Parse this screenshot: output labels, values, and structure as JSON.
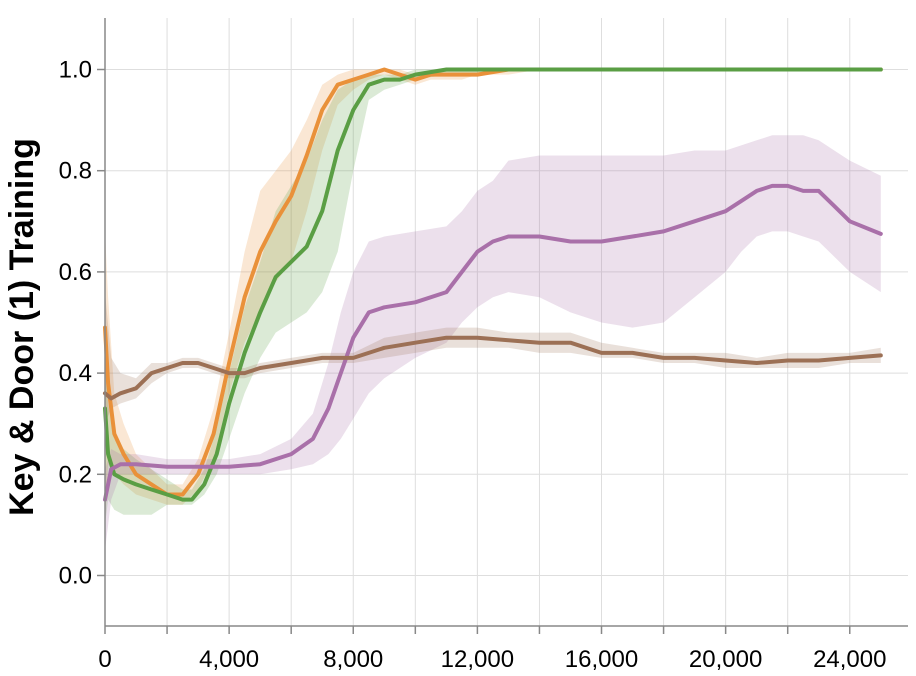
{
  "chart_data": {
    "type": "line",
    "ylabel": "Key & Door (1) Training",
    "xlabel": "",
    "xlim": [
      0,
      26000
    ],
    "ylim": [
      -0.1,
      1.1
    ],
    "grid": true,
    "x_ticks": [
      0,
      2000,
      4000,
      6000,
      8000,
      10000,
      12000,
      14000,
      16000,
      18000,
      20000,
      22000,
      24000,
      26000
    ],
    "x_tick_labels": [
      "0",
      "",
      "4,000",
      "",
      "8,000",
      "",
      "12,000",
      "",
      "16,000",
      "",
      "20,000",
      "",
      "24,000",
      ""
    ],
    "y_ticks": [
      0.0,
      0.2,
      0.4,
      0.6,
      0.8,
      1.0
    ],
    "y_tick_labels": [
      "0.0",
      "0.2",
      "0.4",
      "0.6",
      "0.8",
      "1.0"
    ],
    "series": [
      {
        "color": "#e9913a",
        "x": [
          0,
          100,
          300,
          600,
          1000,
          1500,
          2000,
          2500,
          3000,
          3500,
          4000,
          4500,
          5000,
          5500,
          6000,
          6500,
          7000,
          7500,
          8000,
          8500,
          9000,
          9500,
          10000,
          10500,
          11000,
          11500,
          12000,
          13000,
          14000,
          15000,
          16000,
          18000,
          20000,
          22000,
          25000
        ],
        "y": [
          0.49,
          0.38,
          0.28,
          0.24,
          0.2,
          0.18,
          0.16,
          0.16,
          0.2,
          0.28,
          0.42,
          0.55,
          0.64,
          0.7,
          0.75,
          0.83,
          0.92,
          0.97,
          0.98,
          0.99,
          1.0,
          0.99,
          0.98,
          0.99,
          0.99,
          0.99,
          0.99,
          1.0,
          1.0,
          1.0,
          1.0,
          1.0,
          1.0,
          1.0,
          1.0
        ],
        "lower": [
          0.1,
          0.22,
          0.2,
          0.18,
          0.16,
          0.15,
          0.14,
          0.14,
          0.17,
          0.23,
          0.36,
          0.46,
          0.52,
          0.58,
          0.62,
          0.72,
          0.84,
          0.93,
          0.96,
          0.98,
          0.99,
          0.98,
          0.97,
          0.98,
          0.98,
          0.98,
          0.99,
          0.99,
          1.0,
          1.0,
          1.0,
          1.0,
          1.0,
          1.0,
          1.0
        ],
        "upper": [
          0.68,
          0.55,
          0.36,
          0.3,
          0.24,
          0.21,
          0.18,
          0.18,
          0.23,
          0.33,
          0.48,
          0.64,
          0.76,
          0.8,
          0.84,
          0.9,
          0.97,
          0.99,
          1.0,
          1.0,
          1.0,
          1.0,
          0.99,
          0.99,
          1.0,
          1.0,
          1.0,
          1.0,
          1.0,
          1.0,
          1.0,
          1.0,
          1.0,
          1.0,
          1.0
        ]
      },
      {
        "color": "#5a9e44",
        "x": [
          0,
          100,
          300,
          600,
          1000,
          1500,
          2000,
          2500,
          2800,
          3200,
          3600,
          4000,
          4500,
          5000,
          5500,
          6000,
          6500,
          7000,
          7500,
          8000,
          8500,
          9000,
          9500,
          10000,
          11000,
          12000,
          13000,
          14000,
          16000,
          18000,
          20000,
          22000,
          25000
        ],
        "y": [
          0.33,
          0.24,
          0.2,
          0.19,
          0.18,
          0.17,
          0.16,
          0.15,
          0.15,
          0.18,
          0.24,
          0.34,
          0.44,
          0.52,
          0.59,
          0.62,
          0.65,
          0.72,
          0.84,
          0.92,
          0.97,
          0.98,
          0.98,
          0.99,
          1.0,
          1.0,
          1.0,
          1.0,
          1.0,
          1.0,
          1.0,
          1.0,
          1.0
        ],
        "lower": [
          0.1,
          0.15,
          0.13,
          0.12,
          0.12,
          0.12,
          0.14,
          0.14,
          0.14,
          0.16,
          0.2,
          0.27,
          0.36,
          0.43,
          0.48,
          0.5,
          0.52,
          0.56,
          0.64,
          0.8,
          0.94,
          0.96,
          0.97,
          0.98,
          0.99,
          0.99,
          1.0,
          1.0,
          1.0,
          1.0,
          1.0,
          1.0,
          1.0
        ],
        "upper": [
          0.45,
          0.34,
          0.27,
          0.25,
          0.23,
          0.21,
          0.19,
          0.17,
          0.17,
          0.21,
          0.29,
          0.4,
          0.53,
          0.62,
          0.72,
          0.77,
          0.82,
          0.9,
          0.96,
          0.98,
          0.99,
          0.99,
          0.99,
          1.0,
          1.0,
          1.0,
          1.0,
          1.0,
          1.0,
          1.0,
          1.0,
          1.0,
          1.0
        ]
      },
      {
        "color": "#a970a9",
        "x": [
          0,
          200,
          500,
          1000,
          2000,
          3000,
          4000,
          5000,
          6000,
          6700,
          7200,
          7600,
          8000,
          8500,
          9000,
          10000,
          11000,
          11500,
          12000,
          12500,
          13000,
          14000,
          15000,
          16000,
          17000,
          18000,
          19000,
          20000,
          20500,
          21000,
          21500,
          22000,
          22500,
          23000,
          23500,
          24000,
          25000
        ],
        "y": [
          0.15,
          0.21,
          0.22,
          0.22,
          0.215,
          0.215,
          0.215,
          0.22,
          0.24,
          0.27,
          0.33,
          0.4,
          0.47,
          0.52,
          0.53,
          0.54,
          0.56,
          0.6,
          0.64,
          0.66,
          0.67,
          0.67,
          0.66,
          0.66,
          0.67,
          0.68,
          0.7,
          0.72,
          0.74,
          0.76,
          0.77,
          0.77,
          0.76,
          0.76,
          0.73,
          0.7,
          0.675
        ],
        "lower": [
          0.05,
          0.15,
          0.2,
          0.2,
          0.2,
          0.2,
          0.2,
          0.2,
          0.21,
          0.22,
          0.24,
          0.27,
          0.31,
          0.36,
          0.39,
          0.43,
          0.46,
          0.5,
          0.53,
          0.55,
          0.56,
          0.55,
          0.52,
          0.5,
          0.49,
          0.5,
          0.55,
          0.6,
          0.64,
          0.67,
          0.68,
          0.68,
          0.67,
          0.66,
          0.63,
          0.6,
          0.56
        ],
        "upper": [
          0.21,
          0.25,
          0.24,
          0.24,
          0.23,
          0.23,
          0.23,
          0.24,
          0.27,
          0.32,
          0.42,
          0.52,
          0.6,
          0.66,
          0.67,
          0.68,
          0.69,
          0.72,
          0.76,
          0.78,
          0.82,
          0.83,
          0.83,
          0.83,
          0.83,
          0.83,
          0.84,
          0.84,
          0.85,
          0.86,
          0.87,
          0.87,
          0.87,
          0.86,
          0.84,
          0.82,
          0.79
        ]
      },
      {
        "color": "#9c7055",
        "x": [
          0,
          200,
          500,
          1000,
          1500,
          2000,
          2500,
          3000,
          3500,
          4000,
          4500,
          5000,
          6000,
          7000,
          8000,
          9000,
          10000,
          11000,
          12000,
          13000,
          14000,
          15000,
          16000,
          17000,
          18000,
          19000,
          20000,
          21000,
          22000,
          23000,
          24000,
          25000
        ],
        "y": [
          0.36,
          0.35,
          0.36,
          0.37,
          0.4,
          0.41,
          0.42,
          0.42,
          0.41,
          0.4,
          0.4,
          0.41,
          0.42,
          0.43,
          0.43,
          0.45,
          0.46,
          0.47,
          0.47,
          0.465,
          0.46,
          0.46,
          0.44,
          0.44,
          0.43,
          0.43,
          0.425,
          0.42,
          0.425,
          0.425,
          0.43,
          0.435
        ],
        "lower": [
          0.3,
          0.33,
          0.34,
          0.35,
          0.38,
          0.4,
          0.41,
          0.41,
          0.4,
          0.39,
          0.39,
          0.4,
          0.41,
          0.42,
          0.42,
          0.43,
          0.44,
          0.45,
          0.45,
          0.45,
          0.44,
          0.44,
          0.43,
          0.43,
          0.42,
          0.42,
          0.41,
          0.41,
          0.41,
          0.41,
          0.42,
          0.42
        ],
        "upper": [
          0.56,
          0.43,
          0.4,
          0.39,
          0.42,
          0.42,
          0.43,
          0.43,
          0.42,
          0.41,
          0.41,
          0.42,
          0.43,
          0.44,
          0.44,
          0.47,
          0.48,
          0.49,
          0.49,
          0.48,
          0.48,
          0.48,
          0.46,
          0.45,
          0.44,
          0.44,
          0.44,
          0.43,
          0.44,
          0.44,
          0.44,
          0.45
        ]
      }
    ]
  }
}
